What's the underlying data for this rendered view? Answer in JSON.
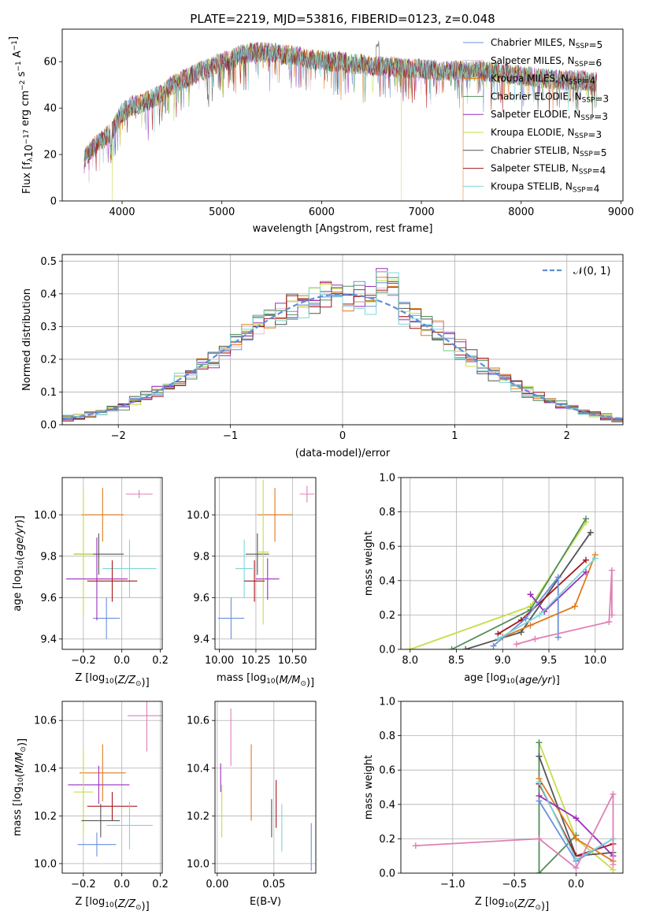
{
  "title": "PLATE=2219, MJD=53816, FIBERID=0123, z=0.048",
  "colors": {
    "Chabrier MILES": "#6a8fdc",
    "Salpeter MILES": "#e3bfd9",
    "Kroupa MILES": "#e07a1f",
    "Chabrier ELODIE": "#4f8f5a",
    "Salpeter ELODIE": "#9b2fbd",
    "Kroupa ELODIE": "#c8dc4a",
    "Chabrier STELIB": "#555555",
    "Salpeter STELIB": "#a5161b",
    "Kroupa STELIB": "#7fd6d6",
    "Normal": "#5b8fe0",
    "Extra": "#e07fb6"
  },
  "chart_data": [
    {
      "id": "spectrum",
      "type": "line",
      "xlabel": "wavelength [Angstrom, rest frame]",
      "ylabel": "Flux [f_λ10^-17 erg cm^-2 s^-1 A^-1]",
      "xlim": [
        3400,
        9020
      ],
      "ylim": [
        0,
        74
      ],
      "xticks": [
        4000,
        5000,
        6000,
        7000,
        8000,
        9000
      ],
      "yticks": [
        0,
        20,
        40,
        60
      ],
      "legend_position": "top-right",
      "legend": [
        {
          "label": "Chabrier MILES",
          "sub": "SSP",
          "n": "5"
        },
        {
          "label": "Salpeter MILES",
          "sub": "SSP",
          "n": "6"
        },
        {
          "label": "Kroupa MILES",
          "sub": "SSP",
          "n": "4"
        },
        {
          "label": "Chabrier ELODIE",
          "sub": "SSP",
          "n": "3"
        },
        {
          "label": "Salpeter ELODIE",
          "sub": "SSP",
          "n": "3"
        },
        {
          "label": "Kroupa ELODIE",
          "sub": "SSP",
          "n": "3"
        },
        {
          "label": "Chabrier STELIB",
          "sub": "SSP",
          "n": "5"
        },
        {
          "label": "Salpeter STELIB",
          "sub": "SSP",
          "n": "4"
        },
        {
          "label": "Kroupa STELIB",
          "sub": "SSP",
          "n": "4"
        }
      ],
      "continuum": [
        [
          3620,
          18
        ],
        [
          3700,
          23
        ],
        [
          3800,
          26
        ],
        [
          3900,
          30
        ],
        [
          4000,
          38
        ],
        [
          4100,
          41
        ],
        [
          4200,
          42
        ],
        [
          4300,
          44
        ],
        [
          4400,
          46
        ],
        [
          4500,
          50
        ],
        [
          4600,
          52
        ],
        [
          4700,
          54
        ],
        [
          4800,
          56
        ],
        [
          4900,
          58
        ],
        [
          5000,
          60
        ],
        [
          5100,
          61
        ],
        [
          5200,
          63
        ],
        [
          5300,
          64
        ],
        [
          5400,
          64
        ],
        [
          5500,
          64
        ],
        [
          5600,
          63
        ],
        [
          5700,
          63
        ],
        [
          5800,
          62
        ],
        [
          5900,
          61
        ],
        [
          6000,
          61
        ],
        [
          6100,
          60
        ],
        [
          6200,
          60
        ],
        [
          6300,
          59
        ],
        [
          6400,
          59
        ],
        [
          6500,
          58
        ],
        [
          6600,
          58
        ],
        [
          6700,
          58
        ],
        [
          6800,
          57
        ],
        [
          6900,
          57
        ],
        [
          7000,
          57
        ],
        [
          7200,
          56
        ],
        [
          7400,
          56
        ],
        [
          7600,
          56
        ],
        [
          7800,
          55
        ],
        [
          8000,
          54
        ],
        [
          8200,
          53
        ],
        [
          8400,
          52
        ],
        [
          8600,
          52
        ],
        [
          8760,
          51
        ]
      ],
      "dropouts": [
        {
          "model": "Kroupa ELODIE",
          "x": 3900
        },
        {
          "model": "Kroupa ELODIE",
          "x": 6800
        },
        {
          "model": "Kroupa MILES",
          "x": 7420
        }
      ]
    },
    {
      "id": "residuals",
      "type": "line",
      "xlabel": "(data-model)/error",
      "ylabel": "Normed distribution",
      "xlim": [
        -2.5,
        2.5
      ],
      "ylim": [
        0,
        0.52
      ],
      "xticks": [
        -2,
        -1,
        0,
        1,
        2
      ],
      "yticks": [
        0.0,
        0.1,
        0.2,
        0.3,
        0.4,
        0.5
      ],
      "legend_position": "top-right",
      "legend_label": "𝒩(0, 1)",
      "bin_width": 0.1
    },
    {
      "id": "age-Z",
      "type": "scatter",
      "xlabel": "Z [log10(Z/Z⊙)]",
      "ylabel": "age  [log10(age/yr)]",
      "xlim": [
        -0.31,
        0.21
      ],
      "ylim": [
        9.35,
        10.18
      ],
      "xticks": [
        -0.2,
        0.0,
        0.2
      ],
      "yticks": [
        9.4,
        9.6,
        9.8,
        10.0
      ],
      "points": [
        {
          "model": "Chabrier MILES",
          "x": -0.08,
          "y": 9.5,
          "xerr": 0.07,
          "yerr": 0.1
        },
        {
          "model": "Kroupa MILES",
          "x": -0.1,
          "y": 10.0,
          "xerr": 0.11,
          "yerr": 0.13
        },
        {
          "model": "Extra",
          "x": 0.09,
          "y": 10.1,
          "xerr": 0.07,
          "yerr": 0.02
        },
        {
          "model": "Chabrier STELIB",
          "x": -0.12,
          "y": 9.81,
          "xerr": 0.13,
          "yerr": 0.1
        },
        {
          "model": "Kroupa ELODIE",
          "x": -0.2,
          "y": 9.81,
          "xerr": 0.05,
          "yerr": 0.3
        },
        {
          "model": "Kroupa STELIB",
          "x": 0.04,
          "y": 9.74,
          "xerr": 0.14,
          "yerr": 0.14
        },
        {
          "model": "Salpeter ELODIE",
          "x": -0.13,
          "y": 9.69,
          "xerr": 0.16,
          "yerr": 0.2
        },
        {
          "model": "Salpeter STELIB",
          "x": -0.05,
          "y": 9.68,
          "xerr": 0.13,
          "yerr": 0.1
        }
      ]
    },
    {
      "id": "age-mass",
      "type": "scatter",
      "xlabel": "mass [log10(M/M⊙)]",
      "ylabel": "",
      "xlim": [
        9.97,
        10.66
      ],
      "ylim": [
        9.35,
        10.18
      ],
      "xticks": [
        10.0,
        10.25,
        10.5
      ],
      "yticks": [
        9.4,
        9.6,
        9.8,
        10.0
      ],
      "points": [
        {
          "model": "Chabrier MILES",
          "x": 10.08,
          "y": 9.5,
          "xerr": 0.09,
          "yerr": 0.1
        },
        {
          "model": "Kroupa MILES",
          "x": 10.38,
          "y": 10.0,
          "xerr": 0.12,
          "yerr": 0.13
        },
        {
          "model": "Extra",
          "x": 10.6,
          "y": 10.1,
          "xerr": 0.05,
          "yerr": 0.04
        },
        {
          "model": "Chabrier STELIB",
          "x": 10.26,
          "y": 9.81,
          "xerr": 0.08,
          "yerr": 0.1
        },
        {
          "model": "Kroupa ELODIE",
          "x": 10.3,
          "y": 9.82,
          "xerr": 0.04,
          "yerr": 0.35
        },
        {
          "model": "Kroupa STELIB",
          "x": 10.17,
          "y": 9.74,
          "xerr": 0.06,
          "yerr": 0.14
        },
        {
          "model": "Salpeter ELODIE",
          "x": 10.33,
          "y": 9.69,
          "xerr": 0.08,
          "yerr": 0.1
        },
        {
          "model": "Salpeter STELIB",
          "x": 10.24,
          "y": 9.68,
          "xerr": 0.07,
          "yerr": 0.1
        }
      ]
    },
    {
      "id": "weight-age",
      "type": "line",
      "xlabel": "age  [log10(age/yr)]",
      "ylabel": "mass weight",
      "xlim": [
        7.9,
        10.3
      ],
      "ylim": [
        0.0,
        1.0
      ],
      "xticks": [
        8.0,
        8.5,
        9.0,
        9.5,
        10.0
      ],
      "yticks": [
        0.0,
        0.2,
        0.4,
        0.6,
        0.8,
        1.0
      ],
      "series": [
        {
          "model": "Kroupa ELODIE",
          "x": [
            8.0,
            9.3,
            9.9
          ],
          "y": [
            0.0,
            0.25,
            0.74
          ]
        },
        {
          "model": "Chabrier ELODIE",
          "x": [
            8.45,
            9.3,
            9.9
          ],
          "y": [
            0.0,
            0.23,
            0.76
          ]
        },
        {
          "model": "Chabrier STELIB",
          "x": [
            8.6,
            9.2,
            9.95
          ],
          "y": [
            0.0,
            0.1,
            0.68
          ]
        },
        {
          "model": "Salpeter STELIB",
          "x": [
            8.95,
            9.2,
            9.9
          ],
          "y": [
            0.09,
            0.17,
            0.52
          ]
        },
        {
          "model": "Kroupa MILES",
          "x": [
            9.0,
            9.3,
            9.78,
            10.0
          ],
          "y": [
            0.07,
            0.14,
            0.25,
            0.55
          ]
        },
        {
          "model": "Salpeter ELODIE",
          "x": [
            9.3,
            9.45,
            9.9
          ],
          "y": [
            0.32,
            0.22,
            0.45
          ]
        },
        {
          "model": "Chabrier MILES",
          "x": [
            8.9,
            9.25,
            9.6,
            9.6
          ],
          "y": [
            0.02,
            0.18,
            0.42,
            0.07
          ]
        },
        {
          "model": "Kroupa STELIB",
          "x": [
            8.95,
            9.4,
            10.0
          ],
          "y": [
            0.06,
            0.2,
            0.53
          ]
        },
        {
          "model": "Extra",
          "x": [
            9.15,
            9.35,
            10.15,
            10.18,
            10.18
          ],
          "y": [
            0.03,
            0.06,
            0.16,
            0.46,
            0.2
          ]
        }
      ]
    },
    {
      "id": "mass-Z",
      "type": "scatter",
      "xlabel": "Z [log10(Z/Z⊙)]",
      "ylabel": "mass [log10(M/M⊙)]",
      "xlim": [
        -0.31,
        0.21
      ],
      "ylim": [
        9.96,
        10.68
      ],
      "xticks": [
        -0.2,
        0.0,
        0.2
      ],
      "yticks": [
        10.0,
        10.2,
        10.4,
        10.6
      ],
      "points": [
        {
          "model": "Chabrier MILES",
          "x": -0.13,
          "y": 10.08,
          "xerr": 0.1,
          "yerr": 0.05
        },
        {
          "model": "Kroupa MILES",
          "x": -0.1,
          "y": 10.38,
          "xerr": 0.12,
          "yerr": 0.12
        },
        {
          "model": "Extra",
          "x": 0.13,
          "y": 10.62,
          "xerr": 0.1,
          "yerr": 0.15
        },
        {
          "model": "Salpeter ELODIE",
          "x": -0.12,
          "y": 10.33,
          "xerr": 0.16,
          "yerr": 0.08
        },
        {
          "model": "Kroupa ELODIE",
          "x": -0.2,
          "y": 10.3,
          "xerr": 0.05,
          "yerr": 0.18
        },
        {
          "model": "Salpeter STELIB",
          "x": -0.05,
          "y": 10.24,
          "xerr": 0.13,
          "yerr": 0.06
        },
        {
          "model": "Chabrier STELIB",
          "x": -0.11,
          "y": 10.18,
          "xerr": 0.1,
          "yerr": 0.07
        },
        {
          "model": "Kroupa STELIB",
          "x": 0.04,
          "y": 10.16,
          "xerr": 0.12,
          "yerr": 0.1
        }
      ]
    },
    {
      "id": "mass-ebv",
      "type": "scatter",
      "xlabel": "E(B-V)",
      "ylabel": "",
      "xlim": [
        -0.002,
        0.087
      ],
      "ylim": [
        9.96,
        10.68
      ],
      "xticks": [
        0.0,
        0.05
      ],
      "yticks": [
        10.0,
        10.2,
        10.4,
        10.6
      ],
      "points": [
        {
          "model": "Extra",
          "x": 0.012,
          "y": 10.53,
          "xerr": 0,
          "yerr": 0.12
        },
        {
          "model": "Salpeter ELODIE",
          "x": 0.003,
          "y": 10.36,
          "xerr": 0,
          "yerr": 0.06
        },
        {
          "model": "Kroupa ELODIE",
          "x": 0.004,
          "y": 10.22,
          "xerr": 0,
          "yerr": 0.11
        },
        {
          "model": "Kroupa MILES",
          "x": 0.03,
          "y": 10.34,
          "xerr": 0,
          "yerr": 0.16
        },
        {
          "model": "Salpeter STELIB",
          "x": 0.052,
          "y": 10.25,
          "xerr": 0,
          "yerr": 0.1
        },
        {
          "model": "Chabrier STELIB",
          "x": 0.048,
          "y": 10.19,
          "xerr": 0,
          "yerr": 0.08
        },
        {
          "model": "Kroupa STELIB",
          "x": 0.057,
          "y": 10.15,
          "xerr": 0,
          "yerr": 0.1
        },
        {
          "model": "Chabrier MILES",
          "x": 0.083,
          "y": 10.07,
          "xerr": 0,
          "yerr": 0.1
        }
      ]
    },
    {
      "id": "weight-Z",
      "type": "line",
      "xlabel": "Z [log10(Z/Z⊙)]",
      "ylabel": "mass weight",
      "xlim": [
        -1.42,
        0.38
      ],
      "ylim": [
        0.0,
        1.0
      ],
      "xticks": [
        -1.0,
        -0.5,
        0.0
      ],
      "yticks": [
        0.0,
        0.2,
        0.4,
        0.6,
        0.8,
        1.0
      ],
      "series": [
        {
          "model": "Kroupa ELODIE",
          "x": [
            -0.3,
            0.0,
            0.3
          ],
          "y": [
            0.76,
            0.2,
            0.02
          ]
        },
        {
          "model": "Chabrier ELODIE",
          "x": [
            -0.3,
            -0.3,
            0.0
          ],
          "y": [
            0.76,
            0.0,
            0.22
          ]
        },
        {
          "model": "Chabrier STELIB",
          "x": [
            -0.3,
            0.0,
            0.3
          ],
          "y": [
            0.68,
            0.1,
            0.12
          ]
        },
        {
          "model": "Kroupa MILES",
          "x": [
            -0.3,
            0.0,
            0.3
          ],
          "y": [
            0.55,
            0.2,
            0.07
          ]
        },
        {
          "model": "Salpeter STELIB",
          "x": [
            -0.3,
            0.0,
            0.3
          ],
          "y": [
            0.52,
            0.1,
            0.17
          ]
        },
        {
          "model": "Salpeter ELODIE",
          "x": [
            -0.3,
            0.0,
            0.3
          ],
          "y": [
            0.45,
            0.32,
            0.1
          ]
        },
        {
          "model": "Chabrier MILES",
          "x": [
            -0.3,
            0.0,
            0.3
          ],
          "y": [
            0.42,
            0.07,
            0.2
          ]
        },
        {
          "model": "Kroupa STELIB",
          "x": [
            -0.3,
            0.0,
            0.3
          ],
          "y": [
            0.53,
            0.08,
            0.2
          ]
        },
        {
          "model": "Extra",
          "x": [
            -1.3,
            -0.3,
            0.0,
            0.3,
            0.3
          ],
          "y": [
            0.16,
            0.2,
            0.03,
            0.46,
            0.05
          ]
        }
      ]
    }
  ]
}
